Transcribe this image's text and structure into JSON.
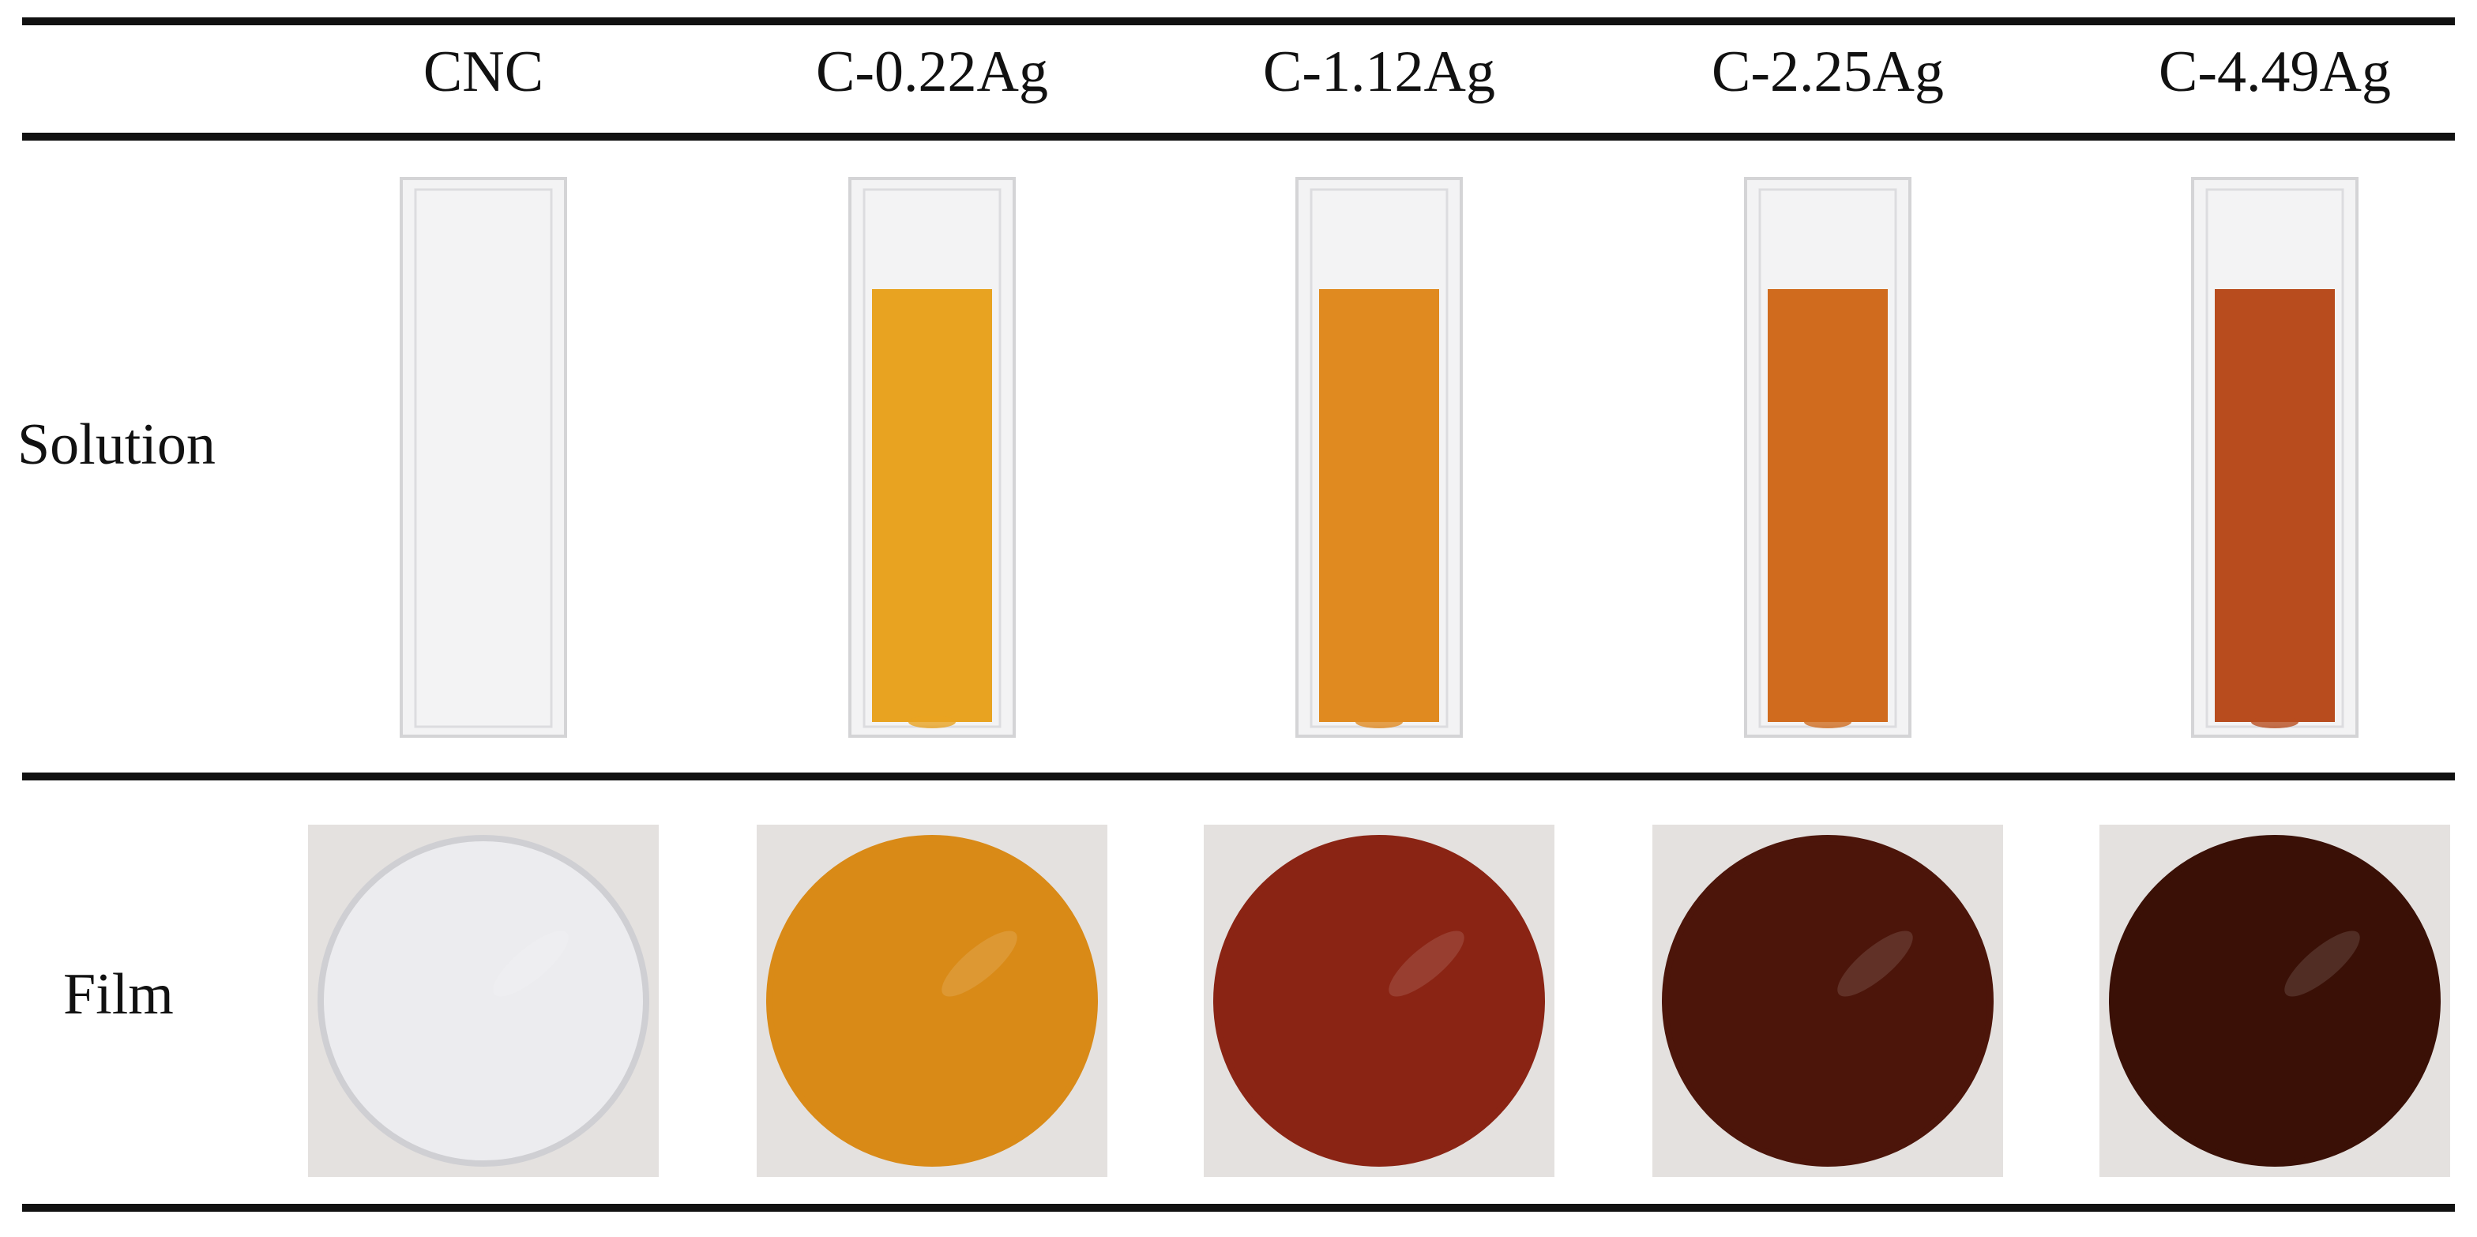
{
  "table": {
    "columns": [
      "CNC",
      "C-0.22Ag",
      "C-1.12Ag",
      "C-2.25Ag",
      "C-4.49Ag"
    ],
    "rows": [
      "Solution",
      "Film"
    ]
  }
}
